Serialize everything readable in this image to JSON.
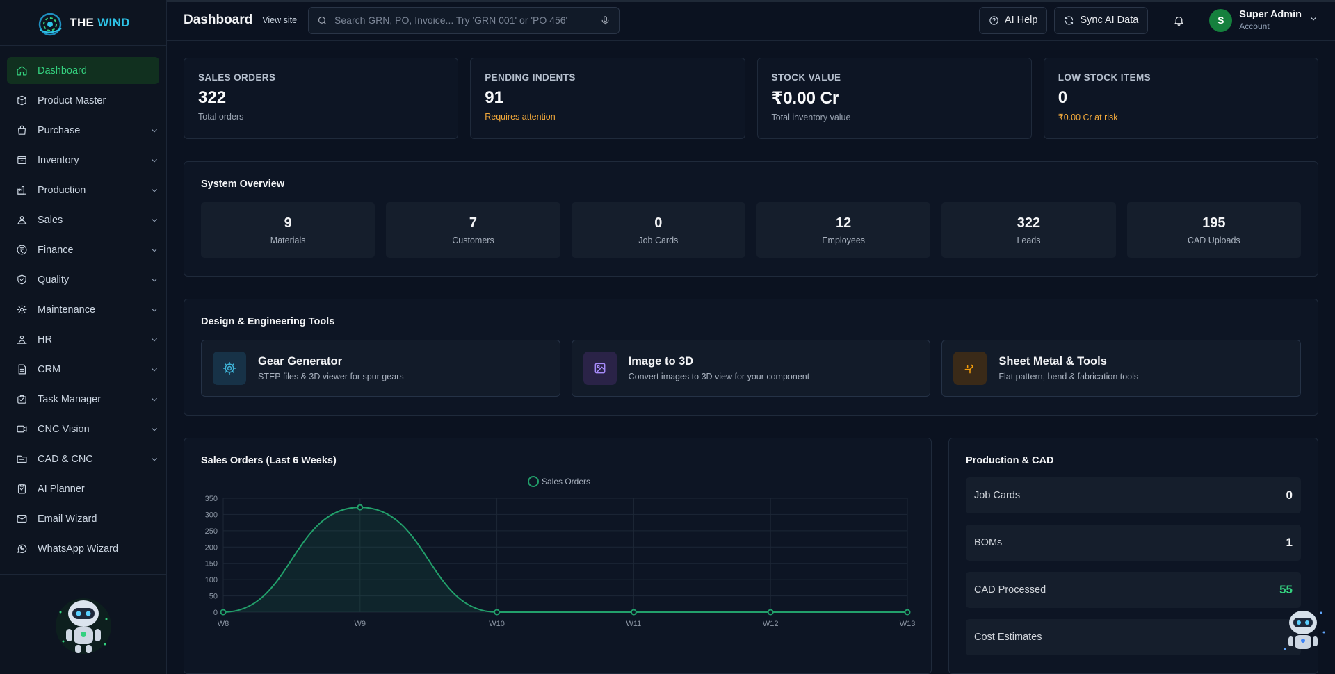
{
  "brand": {
    "name_part1": "THE",
    "name_part2": "WIND"
  },
  "sidebar": {
    "items": [
      {
        "label": "Dashboard",
        "icon": "home-icon",
        "active": true,
        "expandable": false
      },
      {
        "label": "Product Master",
        "icon": "package-icon",
        "expandable": false
      },
      {
        "label": "Purchase",
        "icon": "bag-icon",
        "expandable": true
      },
      {
        "label": "Inventory",
        "icon": "box-icon",
        "expandable": true
      },
      {
        "label": "Production",
        "icon": "factory-icon",
        "expandable": true
      },
      {
        "label": "Sales",
        "icon": "sales-icon",
        "expandable": true
      },
      {
        "label": "Finance",
        "icon": "currency-icon",
        "expandable": true
      },
      {
        "label": "Quality",
        "icon": "shield-check-icon",
        "expandable": true
      },
      {
        "label": "Maintenance",
        "icon": "cog-icon",
        "expandable": true
      },
      {
        "label": "HR",
        "icon": "users-icon",
        "expandable": true
      },
      {
        "label": "CRM",
        "icon": "document-icon",
        "expandable": true
      },
      {
        "label": "Task Manager",
        "icon": "briefcase-icon",
        "expandable": true
      },
      {
        "label": "CNC Vision",
        "icon": "video-icon",
        "expandable": true
      },
      {
        "label": "CAD & CNC",
        "icon": "folder-icon",
        "expandable": true
      },
      {
        "label": "AI Planner",
        "icon": "clipboard-icon",
        "expandable": false
      },
      {
        "label": "Email Wizard",
        "icon": "mail-icon",
        "expandable": false
      },
      {
        "label": "WhatsApp Wizard",
        "icon": "whatsapp-icon",
        "expandable": false
      }
    ]
  },
  "header": {
    "title": "Dashboard",
    "view_site": "View site",
    "search_placeholder": "Search GRN, PO, Invoice... Try 'GRN 001' or 'PO 456'",
    "ai_help": "AI Help",
    "sync": "Sync AI Data",
    "user": {
      "initial": "S",
      "name": "Super Admin",
      "role": "Account"
    }
  },
  "stats": [
    {
      "label": "SALES ORDERS",
      "value": "322",
      "sub": "Total orders",
      "sub_warn": false
    },
    {
      "label": "PENDING INDENTS",
      "value": "91",
      "sub": "Requires attention",
      "sub_warn": true
    },
    {
      "label": "STOCK VALUE",
      "value": "₹0.00 Cr",
      "sub": "Total inventory value",
      "sub_warn": false
    },
    {
      "label": "LOW STOCK ITEMS",
      "value": "0",
      "sub": "₹0.00 Cr at risk",
      "sub_warn": true
    }
  ],
  "overview": {
    "title": "System Overview",
    "cells": [
      {
        "value": "9",
        "label": "Materials"
      },
      {
        "value": "7",
        "label": "Customers"
      },
      {
        "value": "0",
        "label": "Job Cards"
      },
      {
        "value": "12",
        "label": "Employees"
      },
      {
        "value": "322",
        "label": "Leads"
      },
      {
        "value": "195",
        "label": "CAD Uploads"
      }
    ]
  },
  "tools": {
    "title": "Design & Engineering Tools",
    "items": [
      {
        "title": "Gear Generator",
        "desc": "STEP files & 3D viewer for spur gears",
        "icon": "gear-icon",
        "color": "#3fb4d8",
        "bg": "#173247"
      },
      {
        "title": "Image to 3D",
        "desc": "Convert images to 3D view for your component",
        "icon": "image-icon",
        "color": "#a78bfa",
        "bg": "#2a2347"
      },
      {
        "title": "Sheet Metal & Tools",
        "desc": "Flat pattern, bend & fabrication tools",
        "icon": "sheet-metal-icon",
        "color": "#f59e0b",
        "bg": "#3a2a18"
      }
    ]
  },
  "sales_chart": {
    "title": "Sales Orders (Last 6 Weeks)"
  },
  "chart_data": {
    "type": "area",
    "categories": [
      "W8",
      "W9",
      "W10",
      "W11",
      "W12",
      "W13"
    ],
    "series": [
      {
        "name": "Sales Orders",
        "values": [
          0,
          322,
          0,
          0,
          0,
          0
        ],
        "color": "#22a06b"
      }
    ],
    "ylim": [
      0,
      350
    ],
    "yticks": [
      0,
      50,
      100,
      150,
      200,
      250,
      300,
      350
    ],
    "grid": true,
    "legend": "top-center"
  },
  "production": {
    "title": "Production & CAD",
    "rows": [
      {
        "label": "Job Cards",
        "value": "0",
        "green": false
      },
      {
        "label": "BOMs",
        "value": "1",
        "green": false
      },
      {
        "label": "CAD Processed",
        "value": "55",
        "green": true
      },
      {
        "label": "Cost Estimates",
        "value": "",
        "green": false
      }
    ]
  },
  "colors": {
    "accent": "#34d17f",
    "warn": "#f2a93b",
    "bg": "#0b1220"
  }
}
